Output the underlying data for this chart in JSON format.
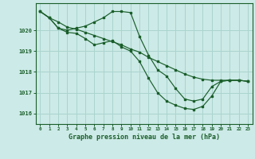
{
  "background_color": "#cceae7",
  "grid_color": "#aad4cf",
  "line_color": "#1a5e2a",
  "title": "Graphe pression niveau de la mer (hPa)",
  "xlim": [
    -0.5,
    23.5
  ],
  "ylim": [
    1015.5,
    1021.3
  ],
  "yticks": [
    1016,
    1017,
    1018,
    1019,
    1020
  ],
  "xticks": [
    0,
    1,
    2,
    3,
    4,
    5,
    6,
    7,
    8,
    9,
    10,
    11,
    12,
    13,
    14,
    15,
    16,
    17,
    18,
    19,
    20,
    21,
    22,
    23
  ],
  "series": [
    {
      "x": [
        0,
        1,
        2,
        3,
        4,
        5,
        6,
        7,
        8,
        9,
        10,
        11,
        12,
        13,
        14,
        15,
        16,
        17,
        18,
        19,
        20,
        21,
        22,
        23
      ],
      "y": [
        1020.9,
        1020.6,
        1020.4,
        1020.15,
        1020.05,
        1019.9,
        1019.75,
        1019.6,
        1019.45,
        1019.3,
        1019.1,
        1018.95,
        1018.7,
        1018.5,
        1018.3,
        1018.1,
        1017.9,
        1017.75,
        1017.65,
        1017.6,
        1017.6,
        1017.6,
        1017.6,
        1017.55
      ]
    },
    {
      "x": [
        0,
        1,
        2,
        3,
        4,
        5,
        6,
        7,
        8,
        9,
        10,
        11,
        12,
        13,
        14,
        15,
        16,
        17,
        18,
        19,
        20,
        21,
        22,
        23
      ],
      "y": [
        1020.9,
        1020.6,
        1020.1,
        1020.0,
        1020.1,
        1020.2,
        1020.4,
        1020.6,
        1020.9,
        1020.9,
        1020.85,
        1019.7,
        1018.8,
        1018.1,
        1017.8,
        1017.2,
        1016.7,
        1016.6,
        1016.7,
        1017.3,
        1017.55,
        1017.6,
        1017.6,
        1017.55
      ]
    },
    {
      "x": [
        0,
        1,
        2,
        3,
        4,
        5,
        6,
        7,
        8,
        9,
        10,
        11,
        12,
        13,
        14,
        15,
        16,
        17,
        18,
        19,
        20,
        21,
        22,
        23
      ],
      "y": [
        1020.9,
        1020.6,
        1020.1,
        1019.9,
        1019.85,
        1019.6,
        1019.3,
        1019.4,
        1019.5,
        1019.2,
        1019.0,
        1018.5,
        1017.7,
        1017.0,
        1016.6,
        1016.4,
        1016.25,
        1016.2,
        1016.35,
        1016.85,
        1017.55,
        1017.6,
        1017.6,
        1017.55
      ]
    }
  ]
}
